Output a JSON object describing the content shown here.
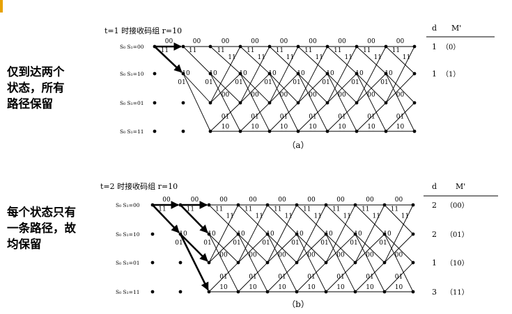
{
  "accent_color": "#e8a200",
  "panels": [
    {
      "id": "a",
      "title": "t=1 时接收码组 r=10",
      "caption": "（a）",
      "note": "仅到达两个\n状态，所有\n路径保留",
      "states": [
        "S₀ S₁=00",
        "S₀ S₁=10",
        "S₀ S₁=01",
        "S₀ S₁=11"
      ],
      "table_headers": [
        "d",
        "M'"
      ],
      "table_rows": [
        {
          "d": "1",
          "m": "（0）"
        },
        {
          "d": "1",
          "m": "（1）"
        },
        {
          "d": "",
          "m": ""
        },
        {
          "d": "",
          "m": ""
        }
      ],
      "bold_branches": [
        {
          "stage": 0,
          "from": 0,
          "to": 0
        },
        {
          "stage": 0,
          "from": 0,
          "to": 1
        }
      ]
    },
    {
      "id": "b",
      "title": "t=2 时接收码组 r=10",
      "caption": "（b）",
      "note": "每个状态只有\n一条路径，故\n均保留",
      "states": [
        "S₀ S₁=00",
        "S₀ S₁=10",
        "S₀ S₁=01",
        "S₀ S₁=11"
      ],
      "table_headers": [
        "d",
        "M'"
      ],
      "table_rows": [
        {
          "d": "2",
          "m": "（00）"
        },
        {
          "d": "2",
          "m": "（01）"
        },
        {
          "d": "1",
          "m": "（10）"
        },
        {
          "d": "3",
          "m": "（11）"
        }
      ],
      "bold_branches": [
        {
          "stage": 0,
          "from": 0,
          "to": 0
        },
        {
          "stage": 0,
          "from": 0,
          "to": 1
        },
        {
          "stage": 1,
          "from": 0,
          "to": 0
        },
        {
          "stage": 1,
          "from": 0,
          "to": 1
        },
        {
          "stage": 1,
          "from": 1,
          "to": 2
        },
        {
          "stage": 1,
          "from": 1,
          "to": 3
        }
      ]
    }
  ],
  "branch_labels": {
    "s00_to_s00": "00",
    "s00_to_s10": "11",
    "s10_to_s01": "10",
    "s10_to_s11": "01",
    "s01_to_s00": "11",
    "s01_to_s10": "00",
    "s11_to_s01": "01",
    "s11_to_s11": "10"
  }
}
